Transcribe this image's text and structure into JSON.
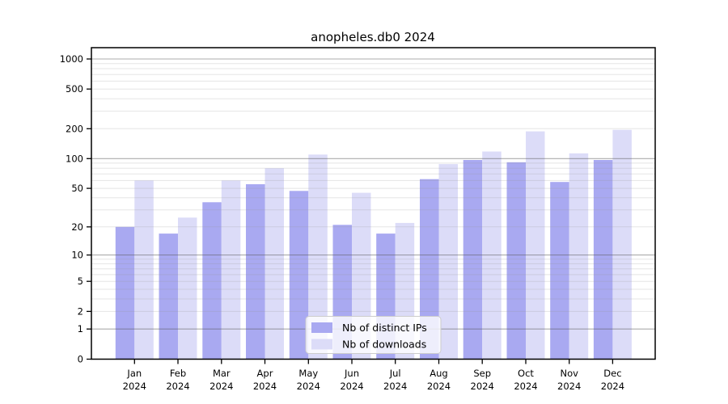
{
  "chart_data": {
    "type": "bar",
    "title": "anopheles.db0 2024",
    "categories": [
      "Jan",
      "Feb",
      "Mar",
      "Apr",
      "May",
      "Jun",
      "Jul",
      "Aug",
      "Sep",
      "Oct",
      "Nov",
      "Dec"
    ],
    "x_sublabel": "2024",
    "series": [
      {
        "name": "Nb of distinct IPs",
        "color": "#a9a9f1",
        "values": [
          20,
          17,
          36,
          55,
          47,
          21,
          17,
          62,
          97,
          92,
          58,
          97
        ]
      },
      {
        "name": "Nb of downloads",
        "color": "#dcdcf8",
        "values": [
          60,
          25,
          60,
          80,
          110,
          45,
          22,
          88,
          118,
          188,
          113,
          195
        ]
      }
    ],
    "y_scale": "log1p",
    "y_ticks": [
      0,
      1,
      2,
      5,
      10,
      20,
      50,
      100,
      200,
      500,
      1000
    ],
    "y_tick_labels": [
      "0",
      "1",
      "2",
      "5",
      "10",
      "20",
      "50",
      "100",
      "200",
      "500",
      "1000"
    ],
    "y_major_gridlines": [
      1,
      10,
      100,
      1000
    ],
    "ylim": [
      0,
      1400
    ],
    "grid": "on",
    "legend_position": "lower center",
    "colors": {
      "axis": "#000000",
      "major_grid": "#b2b2b2",
      "minor_grid": "#e9e9e9",
      "legend_border": "#cccccc"
    }
  }
}
